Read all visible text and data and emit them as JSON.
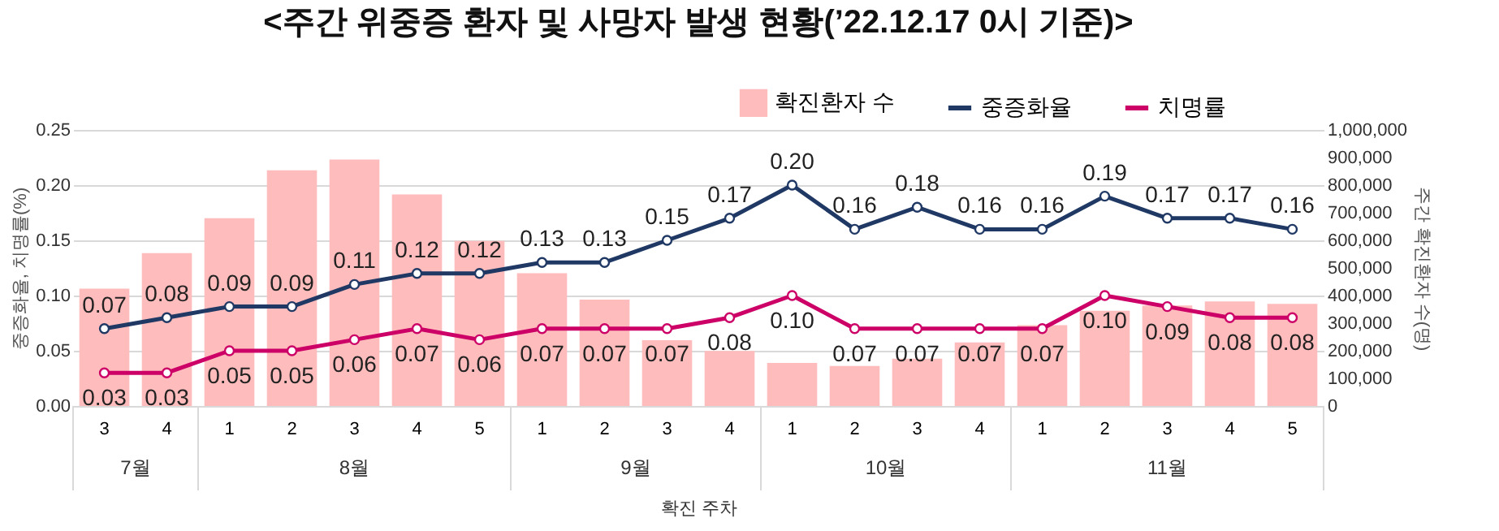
{
  "chart_data": {
    "type": "bar",
    "title": "<주간 위중증 환자 및 사망자 발생 현황(’22.12.17 0시 기준)>",
    "xlabel": "확진 주차",
    "ylabel": "중증화율, 치명률(%)",
    "y2label": "주간 확진환자 수(명)",
    "categories": [
      "3",
      "4",
      "1",
      "2",
      "3",
      "4",
      "5",
      "1",
      "2",
      "3",
      "4",
      "1",
      "2",
      "3",
      "4",
      "1",
      "2",
      "3",
      "4",
      "5"
    ],
    "annotations": [
      "7월",
      "8월",
      "9월",
      "10월",
      "11월"
    ],
    "series": [
      {
        "name": "확진환자 수",
        "axis": "y2",
        "color": "#ffbcbc",
        "values": [
          425000,
          554000,
          680000,
          854000,
          893000,
          766000,
          598000,
          481000,
          385000,
          238000,
          199000,
          156000,
          145000,
          171000,
          230000,
          293000,
          345000,
          364000,
          379000,
          370000
        ]
      },
      {
        "name": "중증화율",
        "type": "line",
        "color": "#1f3864",
        "values": [
          0.07,
          0.08,
          0.09,
          0.09,
          0.11,
          0.12,
          0.12,
          0.13,
          0.13,
          0.15,
          0.17,
          0.2,
          0.16,
          0.18,
          0.16,
          0.16,
          0.19,
          0.17,
          0.17,
          0.16
        ],
        "value_labels": [
          "0.07",
          "0.08",
          "0.09",
          "0.09",
          "0.11",
          "0.12",
          "0.12",
          "0.13",
          "0.13",
          "0.15",
          "0.17",
          "0.20",
          "0.16",
          "0.18",
          "0.16",
          "0.16",
          "0.19",
          "0.17",
          "0.17",
          "0.16"
        ]
      },
      {
        "name": "치명률",
        "type": "line",
        "color": "#cc0066",
        "values": [
          0.03,
          0.03,
          0.05,
          0.05,
          0.06,
          0.07,
          0.06,
          0.07,
          0.07,
          0.07,
          0.08,
          0.1,
          0.07,
          0.07,
          0.07,
          0.07,
          0.1,
          0.09,
          0.08,
          0.08
        ],
        "value_labels": [
          "0.03",
          "0.03",
          "0.05",
          "0.05",
          "0.06",
          "0.07",
          "0.06",
          "0.07",
          "0.07",
          "0.07",
          "0.08",
          "0.10",
          "0.07",
          "0.07",
          "0.07",
          "0.07",
          "0.10",
          "0.09",
          "0.08",
          "0.08"
        ]
      }
    ],
    "ylim": [
      0,
      0.25
    ],
    "yticks": [
      {
        "value": 0,
        "label": "0.00"
      },
      {
        "value": 0.05,
        "label": "0.05"
      },
      {
        "value": 0.1,
        "label": "0.10"
      },
      {
        "value": 0.15,
        "label": "0.15"
      },
      {
        "value": 0.2,
        "label": "0.20"
      },
      {
        "value": 0.25,
        "label": "0.25"
      }
    ],
    "y2lim": [
      0,
      1000000
    ],
    "y2ticks": [
      0,
      {
        "value": 100000,
        "label": "100,000"
      },
      {
        "value": 200000,
        "label": "200,000"
      },
      {
        "value": 300000,
        "label": "300,000"
      },
      {
        "value": 400000,
        "label": "400,000"
      },
      {
        "value": 500000,
        "label": "500,000"
      },
      {
        "value": 600000,
        "label": "600,000"
      },
      {
        "value": 700000,
        "label": "700,000"
      },
      {
        "value": 800000,
        "label": "800,000"
      },
      {
        "value": 900000,
        "label": "900,000"
      },
      {
        "value": 1000000,
        "label": "1,000,000"
      }
    ],
    "grid": "y",
    "legend": "top right",
    "marker": "circle",
    "line_style": "solid"
  }
}
